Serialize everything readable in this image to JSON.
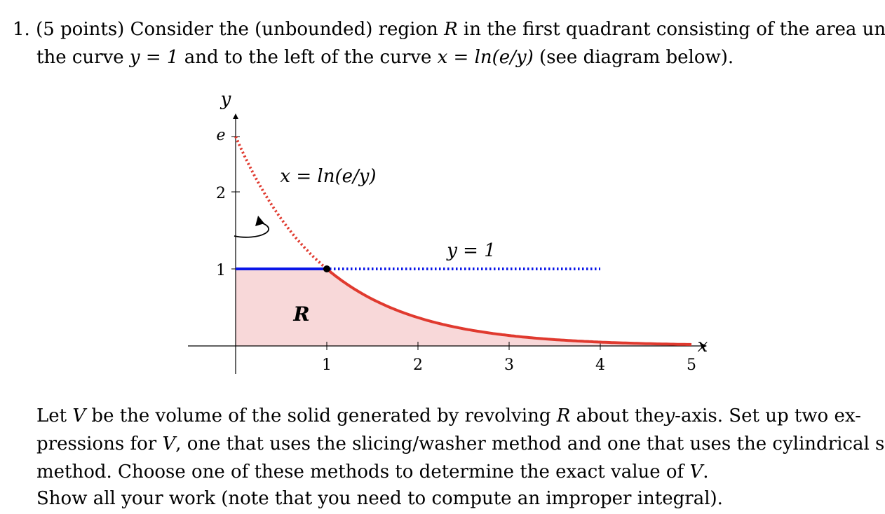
{
  "problem": {
    "number": "1.",
    "points": "(5 points)",
    "intro_1": "Consider the (unbounded) region",
    "region_symbol": "R",
    "intro_2": "in the first quadrant consisting of the area under",
    "intro_3": "the curve",
    "curve_horizontal": "y = 1",
    "intro_4": "and to the left of the curve",
    "curve_exp": "x = ln(e/y)",
    "intro_5": "(see diagram below).",
    "task_1": "Let",
    "volume_symbol": "V",
    "task_2": "be the volume of the solid generated by revolving",
    "task_3": "about the",
    "axis_name": "y",
    "task_4": "-axis. Set up two ex-",
    "task_5": "pressions for",
    "task_6": ", one that uses the slicing/washer method and one that uses the cylindrical shells",
    "task_7": "method. Choose one of these methods to determine the exact value of",
    "task_8": ".",
    "instruction": "Show all your work (note that you need to compute an improper integral)."
  },
  "figure": {
    "y_axis_label": "y",
    "x_axis_label": "x",
    "y_tick_labels": [
      "1",
      "2",
      "e"
    ],
    "x_tick_labels": [
      "1",
      "2",
      "3",
      "4",
      "5"
    ],
    "curve_label": "x = ln(e/y)",
    "line_label": "y = 1",
    "region_label": "R",
    "colors": {
      "curve": "#e03a2f",
      "line": "#0a16e8",
      "region_fill": "#f8d8d9",
      "axis": "#000000",
      "point": "#000000"
    }
  }
}
